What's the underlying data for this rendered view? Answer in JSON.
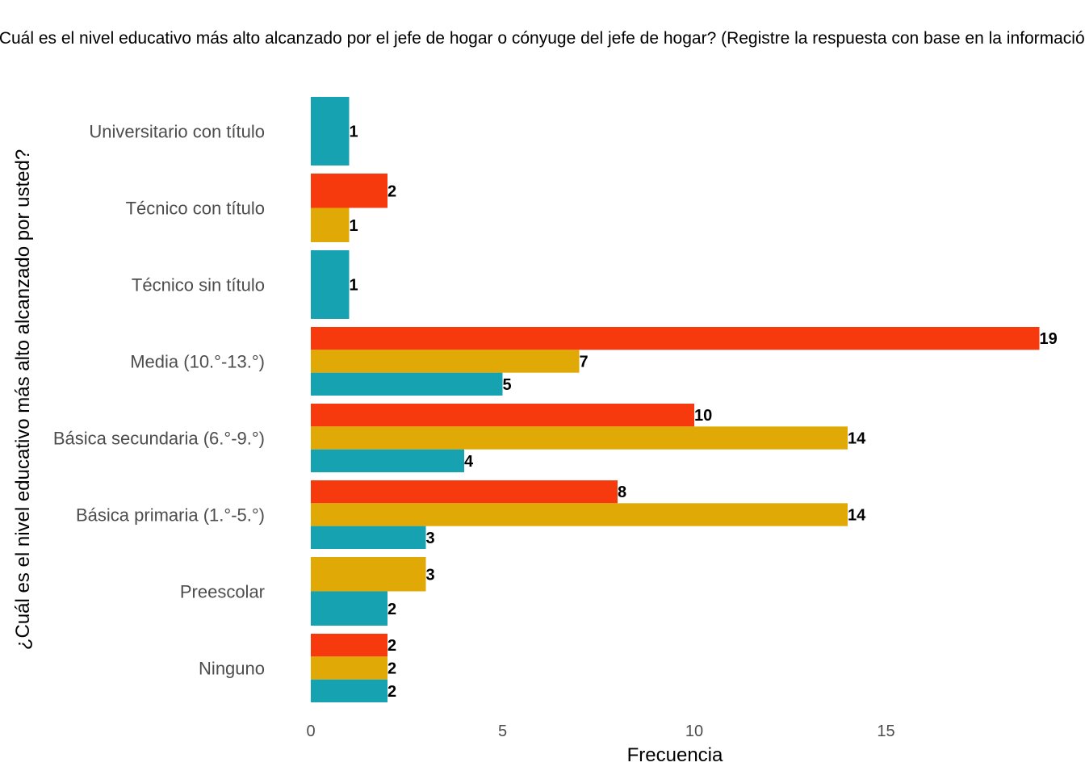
{
  "chart_data": {
    "type": "bar",
    "orientation": "horizontal",
    "title": "¿Cuál es el nivel educativo más alto alcanzado por el jefe de hogar o cónyuge del jefe de hogar? (Registre la respuesta con base en la información proporcionada por el supervisor y verifique la persona efectivamente conoce su nivel educativo)",
    "xlabel": "Frecuencia",
    "ylabel": "¿Cuál es el nivel educativo más alto alcanzado por usted?",
    "xlim": [
      0,
      19.5
    ],
    "xticks": [
      0,
      5,
      10,
      15
    ],
    "grid": false,
    "legend": "none",
    "categories": [
      "Ninguno",
      "Preescolar",
      "Básica primaria (1.°-5.°)",
      "Básica secundaria (6.°-9.°)",
      "Media (10.°-13.°)",
      "Técnico sin título",
      "Técnico con título",
      "Universitario con título"
    ],
    "series": [
      {
        "color": "#f73a0d",
        "values": [
          2,
          0,
          8,
          10,
          19,
          0,
          2,
          0
        ]
      },
      {
        "color": "#e0a906",
        "values": [
          2,
          3,
          14,
          14,
          7,
          0,
          1,
          0
        ]
      },
      {
        "color": "#16a2b0",
        "values": [
          2,
          2,
          3,
          4,
          5,
          1,
          0,
          1
        ]
      }
    ]
  }
}
